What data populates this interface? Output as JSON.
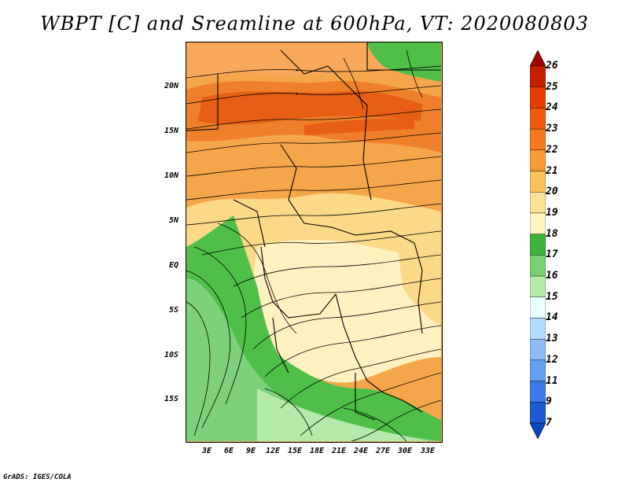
{
  "title": "WBPT [C] and Sreamline at 600hPa, VT: 2020080803",
  "footer": "GrADS: IGES/COLA",
  "map": {
    "variable": "WBPT [C]",
    "level": "600hPa",
    "valid_time": "2020080803",
    "lat_labels": [
      "20N",
      "15N",
      "10N",
      "5N",
      "EQ",
      "5S",
      "10S",
      "15S"
    ],
    "lon_labels": [
      "3E",
      "6E",
      "9E",
      "12E",
      "15E",
      "18E",
      "21E",
      "24E",
      "27E",
      "30E",
      "33E"
    ]
  },
  "colorbar": {
    "levels": [
      "26",
      "25",
      "24",
      "23",
      "22",
      "21",
      "20",
      "19",
      "18",
      "17",
      "16",
      "15",
      "14",
      "13",
      "12",
      "11",
      "9",
      "7"
    ],
    "colors": [
      "#a50000",
      "#c81e00",
      "#e63c00",
      "#f05a0a",
      "#f57a1e",
      "#f79b32",
      "#fac25a",
      "#fde196",
      "#fff5c0",
      "#3cb43c",
      "#78d270",
      "#b4ebaa",
      "#e6ffff",
      "#b4dcff",
      "#8cbef5",
      "#64a0f0",
      "#3c78e6",
      "#1e5ad2",
      "#0a46be"
    ],
    "colors_note": "ordered top to bottom: top arrow, 17 interior bands, bottom arrow"
  }
}
